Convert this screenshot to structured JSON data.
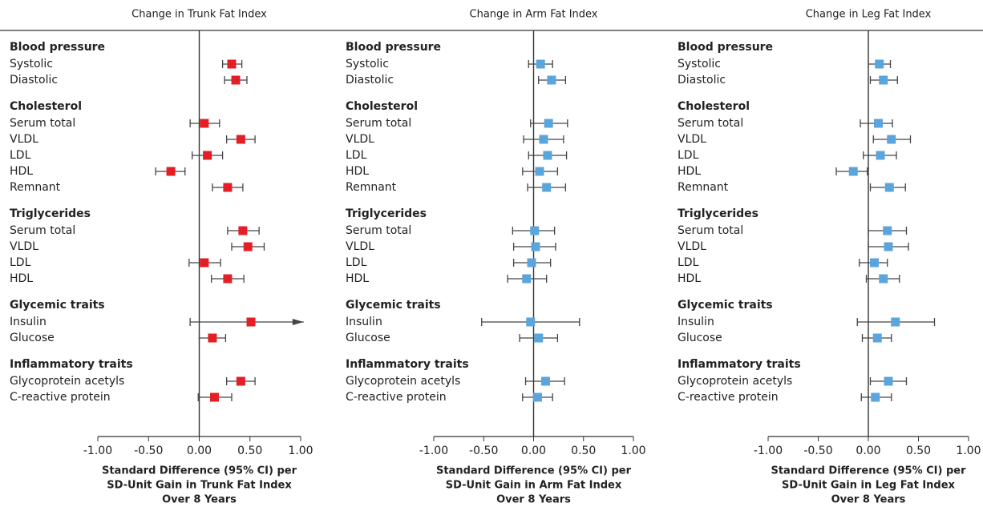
{
  "chart_data": [
    {
      "type": "forest",
      "title": "Change in Trunk Fat Index",
      "color": "#e31e24",
      "x_label": [
        "Standard Difference (95% CI) per",
        "SD-Unit Gain in Trunk Fat Index",
        "Over 8 Years"
      ],
      "xlim": [
        -1,
        1
      ],
      "xticks": [
        {
          "value": -1,
          "label": "-1.00"
        },
        {
          "value": -0.5,
          "label": "-0.50"
        },
        {
          "value": 0,
          "label": "0.00"
        },
        {
          "value": 0.5,
          "label": "0.50"
        },
        {
          "value": 1,
          "label": "1.00"
        }
      ],
      "groups": [
        {
          "name": "Blood pressure",
          "categories": [
            "Systolic",
            "Diastolic"
          ],
          "values": [
            0.32,
            0.36
          ],
          "lower": [
            0.23,
            0.25
          ],
          "upper": [
            0.42,
            0.47
          ]
        },
        {
          "name": "Cholesterol",
          "categories": [
            "Serum total",
            "VLDL",
            "LDL",
            "HDL",
            "Remnant"
          ],
          "values": [
            0.05,
            0.41,
            0.08,
            -0.28,
            0.28
          ],
          "lower": [
            -0.09,
            0.27,
            -0.07,
            -0.43,
            0.13
          ],
          "upper": [
            0.2,
            0.55,
            0.23,
            -0.14,
            0.43
          ]
        },
        {
          "name": "Triglycerides",
          "categories": [
            "Serum total",
            "VLDL",
            "LDL",
            "HDL"
          ],
          "values": [
            0.43,
            0.48,
            0.05,
            0.28
          ],
          "lower": [
            0.28,
            0.32,
            -0.1,
            0.12
          ],
          "upper": [
            0.59,
            0.64,
            0.21,
            0.44
          ]
        },
        {
          "name": "Glycemic traits",
          "categories": [
            "Insulin",
            "Glucose"
          ],
          "values": [
            0.51,
            0.13
          ],
          "lower": [
            -0.09,
            0.0
          ],
          "upper": [
            1.03,
            0.26
          ]
        },
        {
          "name": "Inflammatory traits",
          "categories": [
            "Glycoprotein acetyls",
            "C-reactive protein"
          ],
          "values": [
            0.41,
            0.15
          ],
          "lower": [
            0.27,
            -0.01
          ],
          "upper": [
            0.55,
            0.32
          ]
        }
      ]
    },
    {
      "type": "forest",
      "title": "Change in Arm Fat Index",
      "color": "#5aa5dc",
      "x_label": [
        "Standard Difference (95% CI) per",
        "SD-Unit Gain in Arm Fat Index",
        "Over 8 Years"
      ],
      "xlim": [
        -1,
        1
      ],
      "xticks": [
        {
          "value": -1,
          "label": "-1.00"
        },
        {
          "value": -0.5,
          "label": "-0.50"
        },
        {
          "value": 0,
          "label": "0.00"
        },
        {
          "value": 0.5,
          "label": "0.50"
        },
        {
          "value": 1,
          "label": "1.00"
        }
      ],
      "groups": [
        {
          "name": "Blood pressure",
          "categories": [
            "Systolic",
            "Diastolic"
          ],
          "values": [
            0.07,
            0.18
          ],
          "lower": [
            -0.05,
            0.05
          ],
          "upper": [
            0.19,
            0.32
          ]
        },
        {
          "name": "Cholesterol",
          "categories": [
            "Serum total",
            "VLDL",
            "LDL",
            "HDL",
            "Remnant"
          ],
          "values": [
            0.15,
            0.1,
            0.14,
            0.06,
            0.13
          ],
          "lower": [
            -0.03,
            -0.1,
            -0.05,
            -0.11,
            -0.06
          ],
          "upper": [
            0.34,
            0.3,
            0.33,
            0.24,
            0.32
          ]
        },
        {
          "name": "Triglycerides",
          "categories": [
            "Serum total",
            "VLDL",
            "LDL",
            "HDL"
          ],
          "values": [
            0.01,
            0.02,
            -0.02,
            -0.07
          ],
          "lower": [
            -0.21,
            -0.2,
            -0.2,
            -0.26
          ],
          "upper": [
            0.21,
            0.22,
            0.17,
            0.13
          ]
        },
        {
          "name": "Glycemic traits",
          "categories": [
            "Insulin",
            "Glucose"
          ],
          "values": [
            -0.03,
            0.05
          ],
          "lower": [
            -0.52,
            -0.14
          ],
          "upper": [
            0.46,
            0.24
          ]
        },
        {
          "name": "Inflammatory traits",
          "categories": [
            "Glycoprotein acetyls",
            "C-reactive protein"
          ],
          "values": [
            0.12,
            0.04
          ],
          "lower": [
            -0.08,
            -0.11
          ],
          "upper": [
            0.31,
            0.19
          ]
        }
      ]
    },
    {
      "type": "forest",
      "title": "Change in Leg Fat Index",
      "color": "#5aa5dc",
      "x_label": [
        "Standard Difference (95% CI) per",
        "SD-Unit Gain in Leg Fat Index",
        "Over 8 Years"
      ],
      "xlim": [
        -1,
        1
      ],
      "xticks": [
        {
          "value": -1,
          "label": "-1.00"
        },
        {
          "value": -0.5,
          "label": "-0.50"
        },
        {
          "value": 0,
          "label": "0.00"
        },
        {
          "value": 0.5,
          "label": "0.50"
        },
        {
          "value": 1,
          "label": "1.00"
        }
      ],
      "groups": [
        {
          "name": "Blood pressure",
          "categories": [
            "Systolic",
            "Diastolic"
          ],
          "values": [
            0.11,
            0.15
          ],
          "lower": [
            0.0,
            0.02
          ],
          "upper": [
            0.22,
            0.29
          ]
        },
        {
          "name": "Cholesterol",
          "categories": [
            "Serum total",
            "VLDL",
            "LDL",
            "HDL",
            "Remnant"
          ],
          "values": [
            0.1,
            0.23,
            0.12,
            -0.15,
            0.21
          ],
          "lower": [
            -0.08,
            0.05,
            -0.05,
            -0.32,
            0.02
          ],
          "upper": [
            0.24,
            0.42,
            0.28,
            -0.01,
            0.37
          ]
        },
        {
          "name": "Triglycerides",
          "categories": [
            "Serum total",
            "VLDL",
            "LDL",
            "HDL"
          ],
          "values": [
            0.19,
            0.2,
            0.06,
            0.15
          ],
          "lower": [
            0.0,
            0.0,
            -0.09,
            -0.02
          ],
          "upper": [
            0.38,
            0.4,
            0.19,
            0.31
          ]
        },
        {
          "name": "Glycemic traits",
          "categories": [
            "Insulin",
            "Glucose"
          ],
          "values": [
            0.27,
            0.09
          ],
          "lower": [
            -0.11,
            -0.06
          ],
          "upper": [
            0.66,
            0.23
          ]
        },
        {
          "name": "Inflammatory traits",
          "categories": [
            "Glycoprotein acetyls",
            "C-reactive protein"
          ],
          "values": [
            0.2,
            0.07
          ],
          "lower": [
            0.02,
            -0.07
          ],
          "upper": [
            0.38,
            0.23
          ]
        }
      ]
    }
  ]
}
